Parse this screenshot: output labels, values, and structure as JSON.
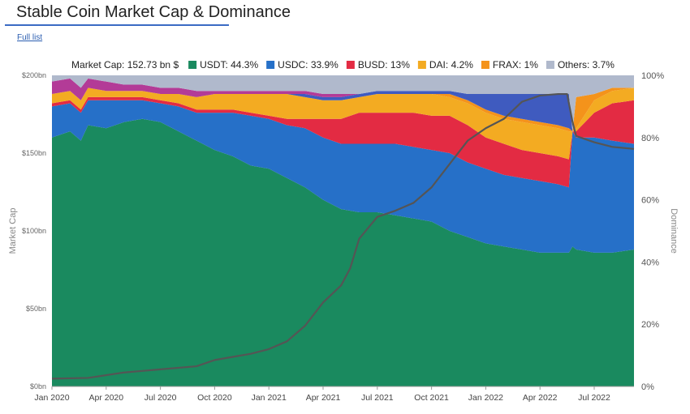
{
  "page": {
    "title": "Stable Coin Market Cap & Dominance",
    "full_list_label": "Full list"
  },
  "colors": {
    "USDT": "#1a8a5f",
    "USDC": "#2670c8",
    "BUSD": "#e32b43",
    "DAI": "#f3ab22",
    "FRAX": "#f4931b",
    "Others": "#b0b9cc",
    "UST": "#3f5bbf",
    "TUSD": "#b33b97",
    "dominance_line": "#555555"
  },
  "chart_data": {
    "type": "area",
    "title": "Stable Coin Market Cap & Dominance",
    "market_cap_label": "Market Cap: 152.73 bn $",
    "legend": [
      {
        "key": "USDT",
        "label": "USDT: 44.3%"
      },
      {
        "key": "USDC",
        "label": "USDC: 33.9%"
      },
      {
        "key": "BUSD",
        "label": "BUSD: 13%"
      },
      {
        "key": "DAI",
        "label": "DAI: 4.2%"
      },
      {
        "key": "FRAX",
        "label": "FRAX: 1%"
      },
      {
        "key": "Others",
        "label": "Others: 3.7%"
      }
    ],
    "ylabel_left": "Market Cap",
    "ylabel_right": "Dominance",
    "y_left_ticks": [
      "$0bn",
      "$50bn",
      "$100bn",
      "$150bn",
      "$200bn"
    ],
    "y_right_ticks": [
      "0%",
      "20%",
      "40%",
      "60%",
      "80%",
      "100%"
    ],
    "x_ticks": [
      {
        "label": "Jan 2020",
        "t": 0
      },
      {
        "label": "Apr 2020",
        "t": 3
      },
      {
        "label": "Jul 2020",
        "t": 6
      },
      {
        "label": "Oct 2020",
        "t": 9
      },
      {
        "label": "Jan 2021",
        "t": 12
      },
      {
        "label": "Apr 2021",
        "t": 15
      },
      {
        "label": "Jul 2021",
        "t": 18
      },
      {
        "label": "Oct 2021",
        "t": 21
      },
      {
        "label": "Jan 2022",
        "t": 24
      },
      {
        "label": "Apr 2022",
        "t": 27
      },
      {
        "label": "Jul 2022",
        "t": 30
      }
    ],
    "x_range_months": [
      0,
      32.2
    ],
    "ylim_pct": [
      0,
      100
    ],
    "stack_order": [
      "USDT",
      "USDC",
      "BUSD",
      "DAI",
      "FRAX",
      "UST",
      "TUSD",
      "Others"
    ],
    "series_cumulative_pct": {
      "t": [
        0,
        1,
        1.6,
        2,
        3,
        4,
        5,
        6,
        7,
        8,
        9,
        10,
        11,
        12,
        13,
        14,
        15,
        16,
        17,
        18,
        19,
        20,
        21,
        22,
        23,
        24,
        25,
        26,
        27,
        28,
        28.6,
        28.8,
        29,
        30,
        31,
        32.2
      ],
      "USDT": [
        80,
        82,
        79,
        84,
        83,
        85,
        86,
        85,
        82,
        79,
        76,
        74,
        71,
        70,
        67,
        64,
        60,
        57,
        56,
        56,
        55,
        54,
        53,
        50,
        48,
        46,
        45,
        44,
        43,
        43,
        43,
        45,
        44,
        43,
        43,
        44
      ],
      "USDC": [
        90,
        91,
        88,
        92,
        92,
        92,
        92,
        91,
        90,
        88,
        88,
        88,
        87,
        86,
        84,
        83,
        80,
        78,
        78,
        78,
        78,
        77,
        76,
        75,
        72,
        70,
        68,
        67,
        66,
        65,
        64,
        82,
        80,
        80,
        79,
        78
      ],
      "BUSD": [
        91,
        92,
        89,
        93,
        93,
        93,
        93,
        92,
        91,
        89,
        89,
        89,
        88,
        87,
        86,
        86,
        86,
        86,
        88,
        88,
        88,
        88,
        87,
        87,
        84,
        80,
        78,
        76,
        75,
        74,
        73,
        82,
        82,
        88,
        91,
        92
      ],
      "DAI": [
        94,
        95,
        92,
        96,
        95,
        95,
        95,
        94,
        94,
        93,
        94,
        94,
        94,
        94,
        94,
        93,
        92,
        92,
        93,
        94,
        94,
        94,
        94,
        93,
        91,
        88,
        86,
        85,
        84,
        83,
        82,
        82,
        83,
        92,
        95,
        96
      ],
      "FRAX": [
        94,
        95,
        92,
        96,
        95,
        95,
        95,
        94,
        94,
        93,
        94,
        94,
        94,
        94,
        94,
        93,
        92,
        92,
        93,
        94,
        94,
        94,
        94,
        94,
        92,
        89,
        87,
        86,
        85,
        84,
        83,
        82,
        93,
        94,
        96,
        96
      ],
      "UST": [
        94,
        95,
        92,
        96,
        95,
        95,
        95,
        94,
        94,
        93,
        94,
        94,
        94,
        94,
        94,
        94,
        93,
        93,
        94,
        95,
        95,
        95,
        95,
        95,
        94,
        94,
        94,
        94,
        94,
        94,
        94,
        82,
        93,
        94,
        96,
        96
      ],
      "TUSD": [
        98,
        99,
        96,
        99,
        98,
        97,
        97,
        96,
        96,
        95,
        95,
        95,
        95,
        95,
        95,
        95,
        94,
        94,
        94,
        95,
        95,
        95,
        95,
        95,
        94,
        94,
        94,
        94,
        94,
        94,
        94,
        82,
        93,
        94,
        96,
        96
      ],
      "Others": [
        100,
        100,
        100,
        100,
        100,
        100,
        100,
        100,
        100,
        100,
        100,
        100,
        100,
        100,
        100,
        100,
        100,
        100,
        100,
        100,
        100,
        100,
        100,
        100,
        100,
        100,
        100,
        100,
        100,
        100,
        100,
        100,
        100,
        100,
        100,
        100
      ]
    },
    "total_market_cap_bn": {
      "t": [
        0,
        2,
        4,
        5,
        6,
        8,
        9,
        10,
        11,
        12,
        13,
        14,
        15,
        16,
        16.5,
        17,
        18,
        19,
        20,
        21,
        22,
        23,
        24,
        25,
        26,
        27,
        28,
        28.5,
        28.8,
        29,
        30,
        31,
        32.2
      ],
      "values": [
        5,
        5.5,
        9,
        10,
        11,
        13,
        17,
        19,
        21,
        24,
        29,
        39,
        54,
        65,
        76,
        95,
        109,
        113,
        118,
        128,
        143,
        158,
        166,
        172,
        183,
        187,
        188,
        188,
        170,
        161,
        157,
        154,
        152.7
      ]
    }
  }
}
